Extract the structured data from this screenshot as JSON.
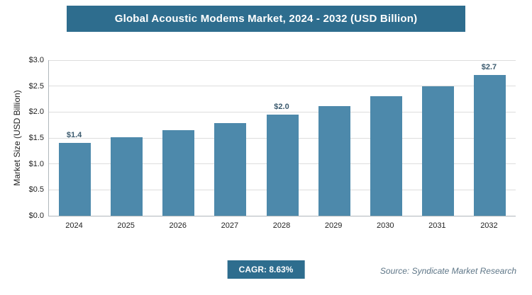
{
  "header": {
    "title": "Global Acoustic Modems Market, 2024 - 2032 (USD Billion)"
  },
  "footer": {
    "cagr_label": "CAGR: 8.63%",
    "source": "Source: Syndicate Market Research"
  },
  "colors": {
    "banner": "#2e6d8e",
    "bar": "#4d89ab",
    "value_label": "#3b5a6e",
    "grid": "#dddddd",
    "axis": "#b0b7bc"
  },
  "chart_data": {
    "type": "bar",
    "title": "Global Acoustic Modems Market, 2024 - 2032 (USD Billion)",
    "xlabel": "",
    "ylabel": "Market Size (USD Billion)",
    "ylim": [
      0,
      3.0
    ],
    "grid": "horizontal",
    "legend": "none",
    "categories": [
      "2024",
      "2025",
      "2026",
      "2027",
      "2028",
      "2029",
      "2030",
      "2031",
      "2032"
    ],
    "values": [
      1.4,
      1.52,
      1.65,
      1.79,
      1.95,
      2.12,
      2.3,
      2.5,
      2.71
    ],
    "bar_labels": [
      "$1.4",
      "",
      "",
      "",
      "$2.0",
      "",
      "",
      "",
      "$2.7"
    ],
    "yticks": [
      {
        "value": 0.0,
        "label": "$0.0"
      },
      {
        "value": 0.5,
        "label": "$0.5"
      },
      {
        "value": 1.0,
        "label": "$1.0"
      },
      {
        "value": 1.5,
        "label": "$1.5"
      },
      {
        "value": 2.0,
        "label": "$2.0"
      },
      {
        "value": 2.5,
        "label": "$2.5"
      },
      {
        "value": 3.0,
        "label": "$3.0"
      }
    ],
    "cagr": "8.63%",
    "source": "Syndicate Market Research"
  }
}
